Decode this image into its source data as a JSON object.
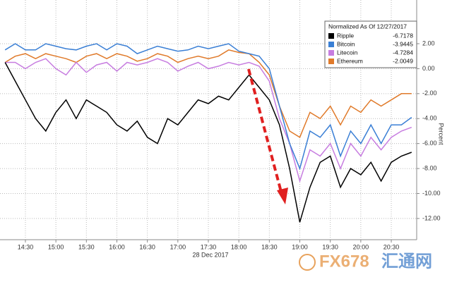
{
  "chart_data": {
    "type": "line",
    "legend_title": "Normalized As Of 12/27/2017",
    "y_label": "Percent",
    "x_sublabel": "28 Dec 2017",
    "watermark": [
      "FX678",
      "汇通网"
    ],
    "xlim": [
      "14:05",
      "20:55"
    ],
    "ylim": [
      -13.7,
      5.5
    ],
    "grid": true,
    "xticks": [
      "14:30",
      "15:00",
      "15:30",
      "16:00",
      "16:30",
      "17:00",
      "17:30",
      "18:00",
      "18:30",
      "19:00",
      "19:30",
      "20:00",
      "20:30"
    ],
    "yticks": [
      {
        "value": 2,
        "label": "2.00"
      },
      {
        "value": 0,
        "label": "0.00"
      },
      {
        "value": -2,
        "label": "-2.00"
      },
      {
        "value": -4,
        "label": "-4.00"
      },
      {
        "value": -6,
        "label": "-6.00"
      },
      {
        "value": -8,
        "label": "-8.00"
      },
      {
        "value": -10,
        "label": "-10.00"
      },
      {
        "value": -12,
        "label": "-12.00"
      }
    ],
    "x": [
      "14:10",
      "14:20",
      "14:30",
      "14:40",
      "14:50",
      "15:00",
      "15:10",
      "15:20",
      "15:30",
      "15:40",
      "15:50",
      "16:00",
      "16:10",
      "16:20",
      "16:30",
      "16:40",
      "16:50",
      "17:00",
      "17:10",
      "17:20",
      "17:30",
      "17:40",
      "17:50",
      "18:00",
      "18:10",
      "18:20",
      "18:30",
      "18:40",
      "18:50",
      "19:00",
      "19:10",
      "19:20",
      "19:30",
      "19:40",
      "19:50",
      "20:00",
      "20:10",
      "20:20",
      "20:30",
      "20:40",
      "20:50"
    ],
    "series": [
      {
        "name": "Ripple",
        "last": -6.7178,
        "color": "#000000",
        "values": [
          0.5,
          -1,
          -2.5,
          -4,
          -5,
          -3.5,
          -2.5,
          -4,
          -2.5,
          -3,
          -3.5,
          -4.5,
          -5,
          -4.2,
          -5.5,
          -6,
          -4,
          -4.5,
          -3.5,
          -2.5,
          -2.8,
          -2.2,
          -2.5,
          -1.5,
          -0.5,
          -1.5,
          -2.5,
          -4.5,
          -8,
          -12.3,
          -9.5,
          -7.5,
          -7,
          -9.5,
          -8,
          -8.5,
          -7.5,
          -9,
          -7.5,
          -7,
          -6.7
        ]
      },
      {
        "name": "Bitcoin",
        "last": -3.9445,
        "color": "#3a7fd5",
        "values": [
          1.5,
          2,
          1.5,
          1.5,
          2,
          1.8,
          1.6,
          1.5,
          1.8,
          2,
          1.5,
          2,
          1.8,
          1.2,
          1.5,
          1.8,
          1.6,
          1.4,
          1.5,
          1.8,
          1.6,
          1.8,
          2,
          1.4,
          1.2,
          1.0,
          0,
          -3,
          -6,
          -8,
          -5,
          -5.5,
          -4.5,
          -7,
          -5,
          -6,
          -4.5,
          -6,
          -4.5,
          -4.5,
          -3.9
        ]
      },
      {
        "name": "Litecoin",
        "last": -4.7284,
        "color": "#c77de0",
        "values": [
          0.5,
          0.5,
          0,
          0.5,
          0.8,
          0,
          -0.5,
          0.5,
          -0.3,
          0.3,
          0.5,
          -0.2,
          0.5,
          0.3,
          0.5,
          0.8,
          0.5,
          -0.2,
          0.2,
          0.5,
          0,
          0.2,
          0.5,
          0.3,
          0.5,
          0.2,
          -1,
          -4,
          -6,
          -9,
          -6.5,
          -7,
          -6,
          -8,
          -6,
          -7,
          -5.5,
          -6.5,
          -5.5,
          -5,
          -4.7
        ]
      },
      {
        "name": "Ethereum",
        "last": -2.0049,
        "color": "#e07a2a",
        "values": [
          0.5,
          1,
          1.2,
          0.8,
          1.2,
          1,
          0.8,
          0.5,
          1,
          1.2,
          0.8,
          1.2,
          1,
          0.6,
          0.8,
          1.2,
          1,
          0.5,
          0.8,
          1,
          0.8,
          1,
          1.5,
          1.3,
          1.2,
          0.5,
          -0.5,
          -3,
          -5,
          -5.5,
          -3.5,
          -4,
          -3,
          -4.5,
          -3,
          -3.5,
          -2.5,
          -3,
          -2.5,
          -2,
          -2.0
        ]
      }
    ]
  }
}
